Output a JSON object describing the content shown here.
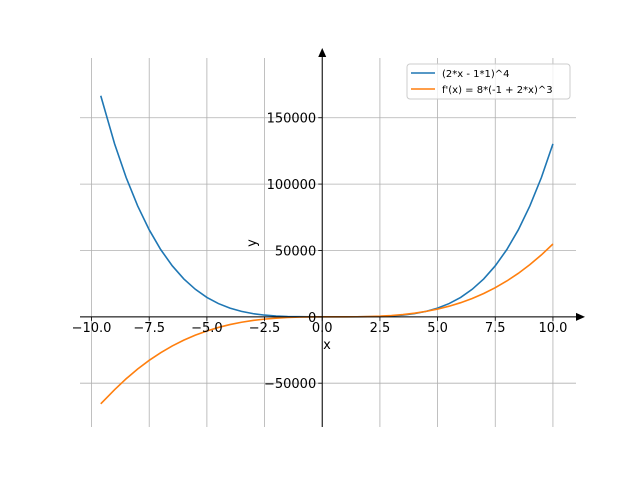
{
  "chart_data": {
    "type": "line",
    "xlabel": "x",
    "ylabel": "y",
    "xlim": [
      -10.5,
      11.0
    ],
    "ylim": [
      -83000,
      195000
    ],
    "grid": true,
    "legend_position": "top-right",
    "x_ticks": [
      -10.0,
      -7.5,
      -5.0,
      -2.5,
      0.0,
      2.5,
      5.0,
      7.5,
      10.0
    ],
    "x_tick_labels": [
      "−10.0",
      "−7.5",
      "−5.0",
      "−2.5",
      "0.0",
      "2.5",
      "5.0",
      "7.5",
      "10.0"
    ],
    "y_ticks": [
      -50000,
      0,
      50000,
      100000,
      150000
    ],
    "y_tick_labels": [
      "−50000",
      "0",
      "50000",
      "100000",
      "150000"
    ],
    "series": [
      {
        "name": "(2*x - 1*1)^4",
        "color": "#1f77b4",
        "x": [
          -9.6,
          -9.0,
          -8.5,
          -8.0,
          -7.5,
          -7.0,
          -6.5,
          -6.0,
          -5.5,
          -5.0,
          -4.5,
          -4.0,
          -3.5,
          -3.0,
          -2.5,
          -2.0,
          -1.5,
          -1.0,
          -0.5,
          0.0,
          0.5,
          1.0,
          1.5,
          2.0,
          2.5,
          3.0,
          3.5,
          4.0,
          4.5,
          5.0,
          5.5,
          6.0,
          6.5,
          7.0,
          7.5,
          8.0,
          8.5,
          9.0,
          9.5,
          10.0
        ],
        "y": [
          166550,
          130321,
          104976,
          83521,
          65536,
          50625,
          38416,
          28561,
          20736,
          14641,
          10000,
          6561,
          4096,
          2401,
          1296,
          625,
          256,
          81,
          16,
          1,
          0,
          1,
          16,
          81,
          256,
          625,
          1296,
          2401,
          4096,
          6561,
          10000,
          14641,
          20736,
          28561,
          38416,
          50625,
          65536,
          83521,
          104976,
          130321
        ]
      },
      {
        "name": "f'(x) = 8*(-1 + 2*x)^3",
        "color": "#ff7f0e",
        "x": [
          -9.6,
          -9.0,
          -8.5,
          -8.0,
          -7.5,
          -7.0,
          -6.5,
          -6.0,
          -5.5,
          -5.0,
          -4.5,
          -4.0,
          -3.5,
          -3.0,
          -2.5,
          -2.0,
          -1.5,
          -1.0,
          -0.5,
          0.0,
          0.5,
          1.0,
          1.5,
          2.0,
          2.5,
          3.0,
          3.5,
          4.0,
          4.5,
          5.0,
          5.5,
          6.0,
          6.5,
          7.0,
          7.5,
          8.0,
          8.5,
          9.0,
          9.5,
          10.0
        ],
        "y": [
          -65520,
          -54872,
          -46656,
          -39304,
          -32768,
          -27000,
          -21952,
          -17576,
          -13824,
          -10648,
          -8000,
          -5832,
          -4096,
          -2744,
          -1728,
          -1000,
          -512,
          -216,
          -64,
          -8,
          0,
          8,
          64,
          216,
          512,
          1000,
          1728,
          2744,
          4096,
          5832,
          8000,
          10648,
          13824,
          17576,
          21952,
          27000,
          32768,
          39304,
          46656,
          54872
        ]
      }
    ]
  }
}
